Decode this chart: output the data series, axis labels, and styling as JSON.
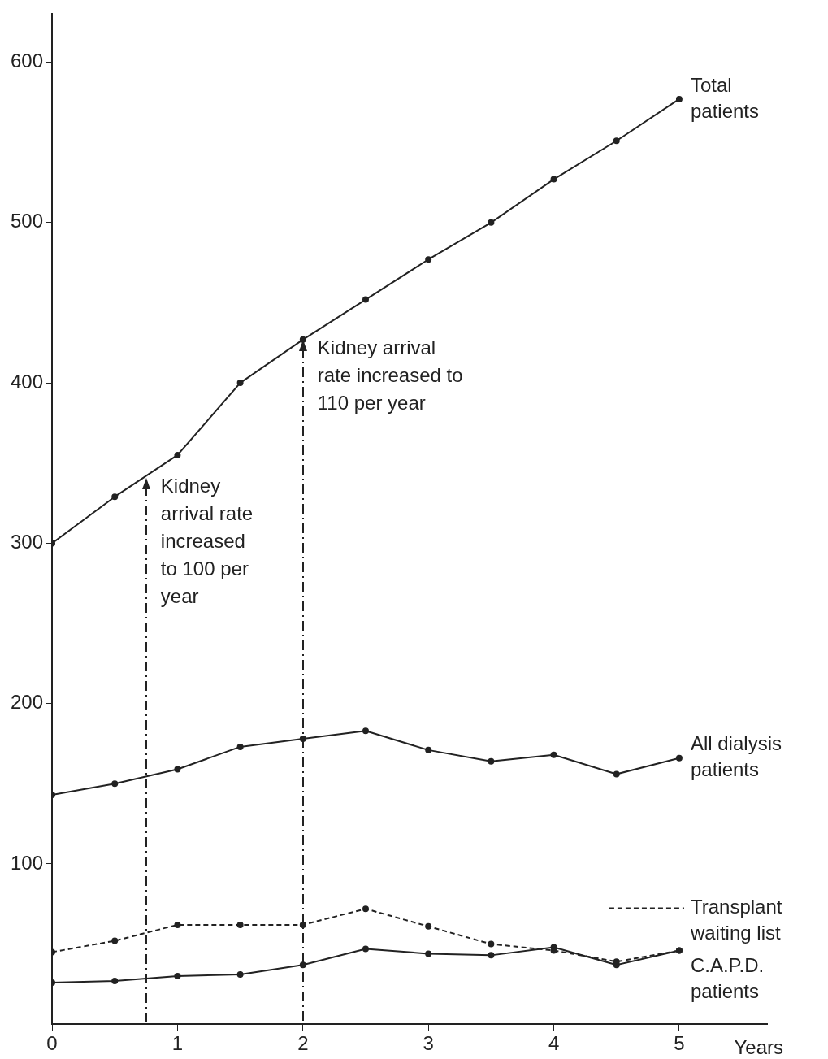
{
  "chart_data": {
    "type": "line",
    "xlabel": "Years",
    "x": [
      0,
      0.5,
      1,
      1.5,
      2,
      2.5,
      3,
      3.5,
      4,
      4.5,
      5
    ],
    "series": [
      {
        "name": "Total patients",
        "color": "#222222",
        "values": [
          300,
          329,
          355,
          400,
          427,
          452,
          477,
          500,
          527,
          551,
          577
        ]
      },
      {
        "name": "All dialysis patients",
        "color": "#222222",
        "values": [
          143,
          150,
          159,
          173,
          178,
          183,
          171,
          164,
          168,
          156,
          166
        ]
      },
      {
        "name": "Transplant waiting list",
        "color": "#222222",
        "line_style": "dashed",
        "values": [
          45,
          52,
          62,
          62,
          62,
          72,
          61,
          50,
          46,
          39,
          46
        ]
      },
      {
        "name": "C.A.P.D. patients",
        "color": "#222222",
        "values": [
          26,
          27,
          30,
          31,
          37,
          47,
          44,
          43,
          48,
          37,
          46
        ]
      }
    ],
    "xlim": [
      0,
      5.7
    ],
    "xticks": [
      0,
      1,
      2,
      3,
      4,
      5
    ],
    "ylim": [
      0,
      630
    ],
    "yticks": [
      100,
      200,
      300,
      400,
      500,
      600
    ],
    "grid": false,
    "legend": "right",
    "marker": "circle",
    "line_style": "solid",
    "annotations": [
      {
        "text": "Kidney arrival rate increased to 100 per year",
        "x": 0.75,
        "y": 341
      },
      {
        "text": "Kidney arrival rate increased to 110 per year",
        "x": 2,
        "y": 427
      }
    ]
  }
}
